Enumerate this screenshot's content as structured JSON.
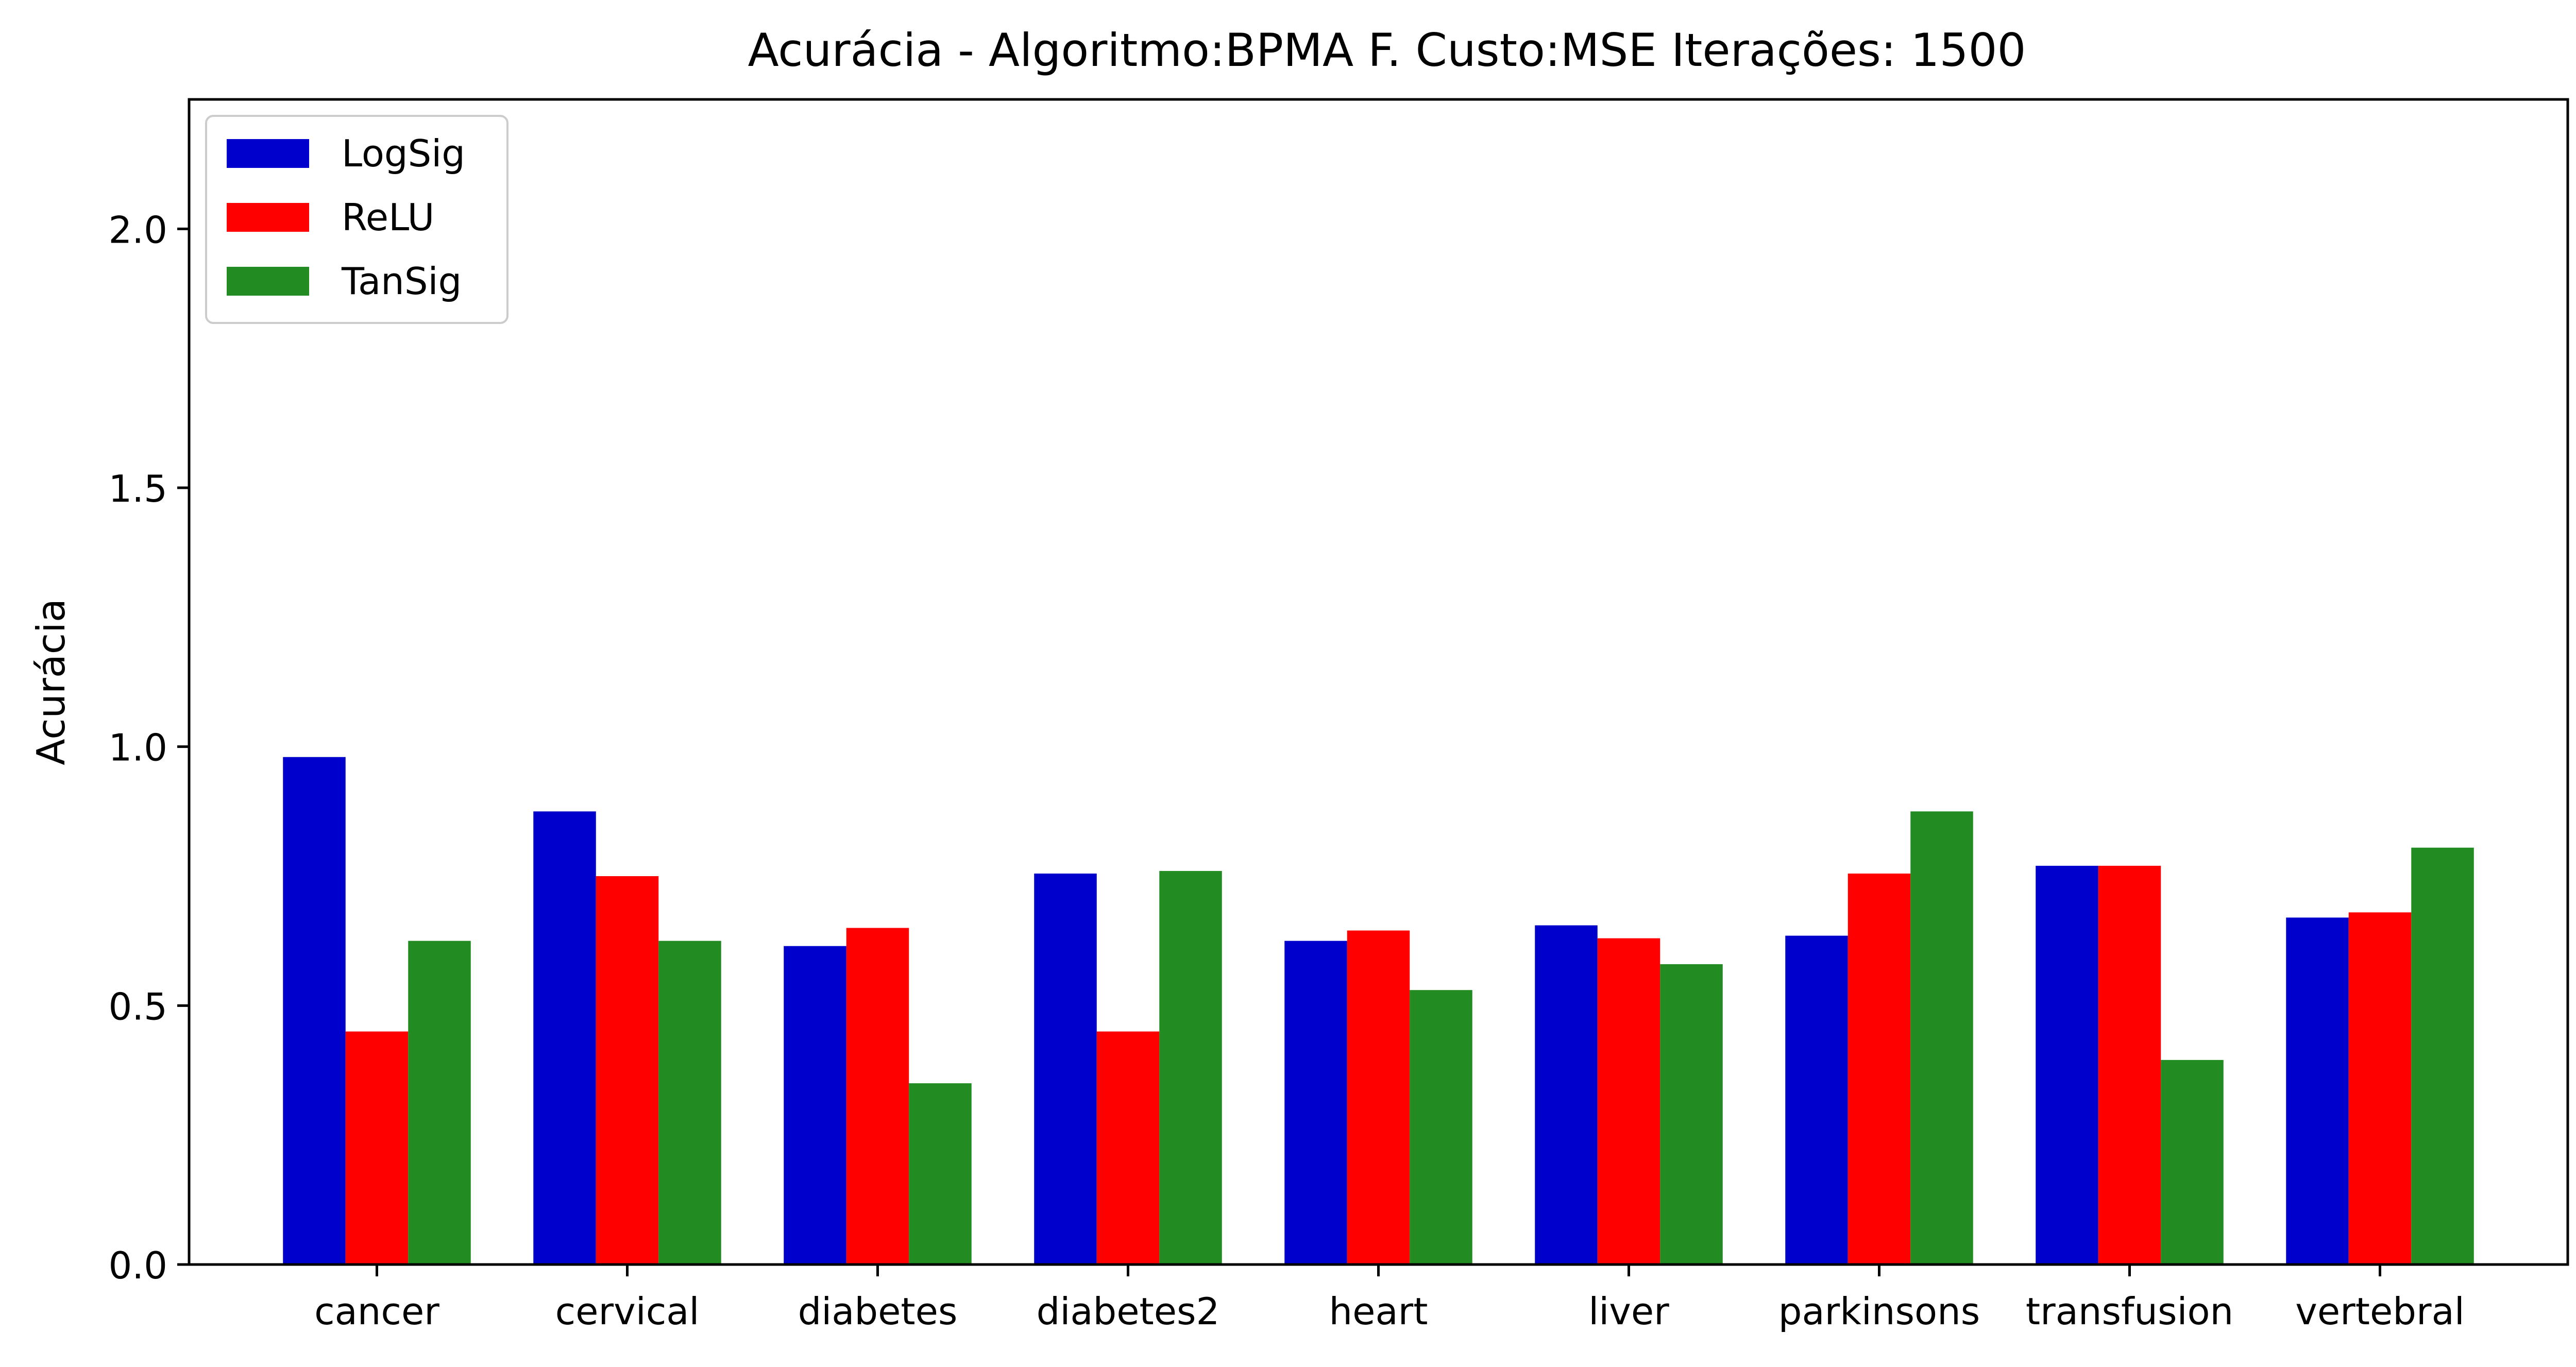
{
  "chart_data": {
    "type": "bar",
    "title": "Acurácia - Algoritmo:BPMA F. Custo:MSE Iterações: 1500",
    "xlabel": "",
    "ylabel": "Acurácia",
    "ylim": [
      0,
      2.25
    ],
    "yticks": [
      0.0,
      0.5,
      1.0,
      1.5,
      2.0
    ],
    "ytick_labels": [
      "0.0",
      "0.5",
      "1.0",
      "1.5",
      "2.0"
    ],
    "grid": false,
    "legend_position": "top-left",
    "categories": [
      "cancer",
      "cervical",
      "diabetes",
      "diabetes2",
      "heart",
      "liver",
      "parkinsons",
      "transfusion",
      "vertebral"
    ],
    "series": [
      {
        "name": "LogSig",
        "color": "#0000cc",
        "values": [
          0.98,
          0.875,
          0.615,
          0.755,
          0.625,
          0.655,
          0.635,
          0.77,
          0.67
        ]
      },
      {
        "name": "ReLU",
        "color": "#ff0000",
        "values": [
          0.45,
          0.75,
          0.65,
          0.45,
          0.645,
          0.63,
          0.755,
          0.77,
          0.68
        ]
      },
      {
        "name": "TanSig",
        "color": "#228b22",
        "values": [
          0.625,
          0.625,
          0.35,
          0.76,
          0.53,
          0.58,
          0.875,
          0.395,
          0.805
        ]
      }
    ]
  }
}
